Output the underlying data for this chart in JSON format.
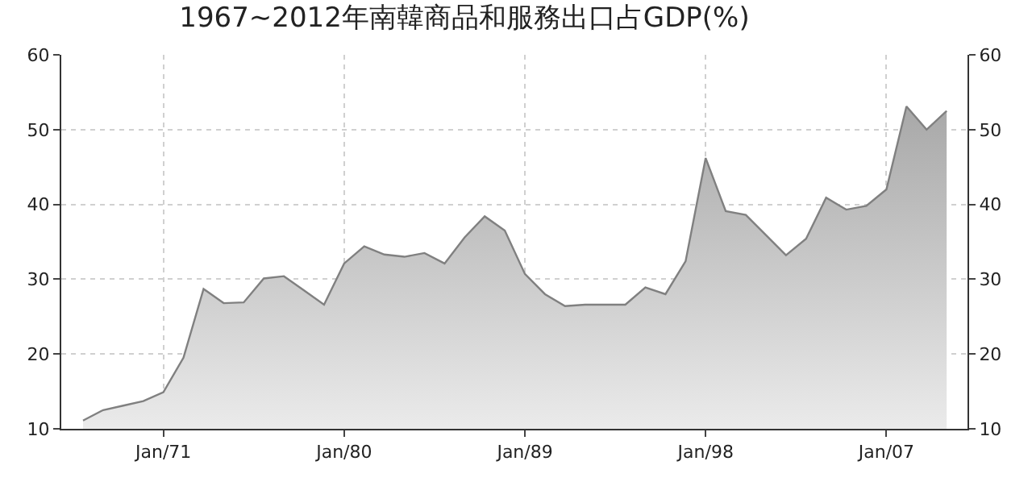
{
  "chart_data": {
    "type": "area",
    "title": "1967~2012年南韓商品和服務出口占GDP(%)",
    "x": [
      "1967",
      "1968",
      "1969",
      "1970",
      "1971",
      "1972",
      "1973",
      "1974",
      "1975",
      "1976",
      "1977",
      "1978",
      "1979",
      "1980",
      "1981",
      "1982",
      "1983",
      "1984",
      "1985",
      "1986",
      "1987",
      "1988",
      "1989",
      "1990",
      "1991",
      "1992",
      "1993",
      "1994",
      "1995",
      "1996",
      "1997",
      "1998",
      "1999",
      "2000",
      "2001",
      "2002",
      "2003",
      "2004",
      "2005",
      "2006",
      "2007",
      "2008",
      "2009",
      "2010"
    ],
    "series": [
      {
        "color": "#808080",
        "values": [
          11.1,
          12.5,
          13.1,
          13.7,
          14.9,
          19.5,
          28.7,
          26.8,
          26.9,
          30.1,
          30.4,
          28.5,
          26.6,
          32.1,
          34.4,
          33.3,
          33.0,
          33.5,
          32.1,
          35.6,
          38.4,
          36.5,
          30.7,
          28.0,
          26.4,
          26.6,
          26.6,
          26.6,
          28.9,
          28.0,
          32.4,
          46.2,
          39.1,
          38.6,
          35.9,
          33.2,
          35.4,
          40.9,
          39.3,
          39.8,
          42.0,
          53.1,
          50.0,
          52.5
        ]
      }
    ],
    "xlim": [
      "1965-12-01",
      "2011-01-15"
    ],
    "xticks": [
      {
        "value": "1971-01-01",
        "label": "Jan/71"
      },
      {
        "value": "1980-01-01",
        "label": "Jan/80"
      },
      {
        "value": "1989-01-01",
        "label": "Jan/89"
      },
      {
        "value": "1998-01-01",
        "label": "Jan/98"
      },
      {
        "value": "2007-01-01",
        "label": "Jan/07"
      }
    ],
    "ylim": [
      10,
      60
    ],
    "yticks": [
      10,
      20,
      30,
      40,
      50,
      60
    ],
    "y2lim": [
      10,
      60
    ],
    "y2ticks": [
      10,
      20,
      30,
      40,
      50,
      60
    ],
    "grid": true
  }
}
